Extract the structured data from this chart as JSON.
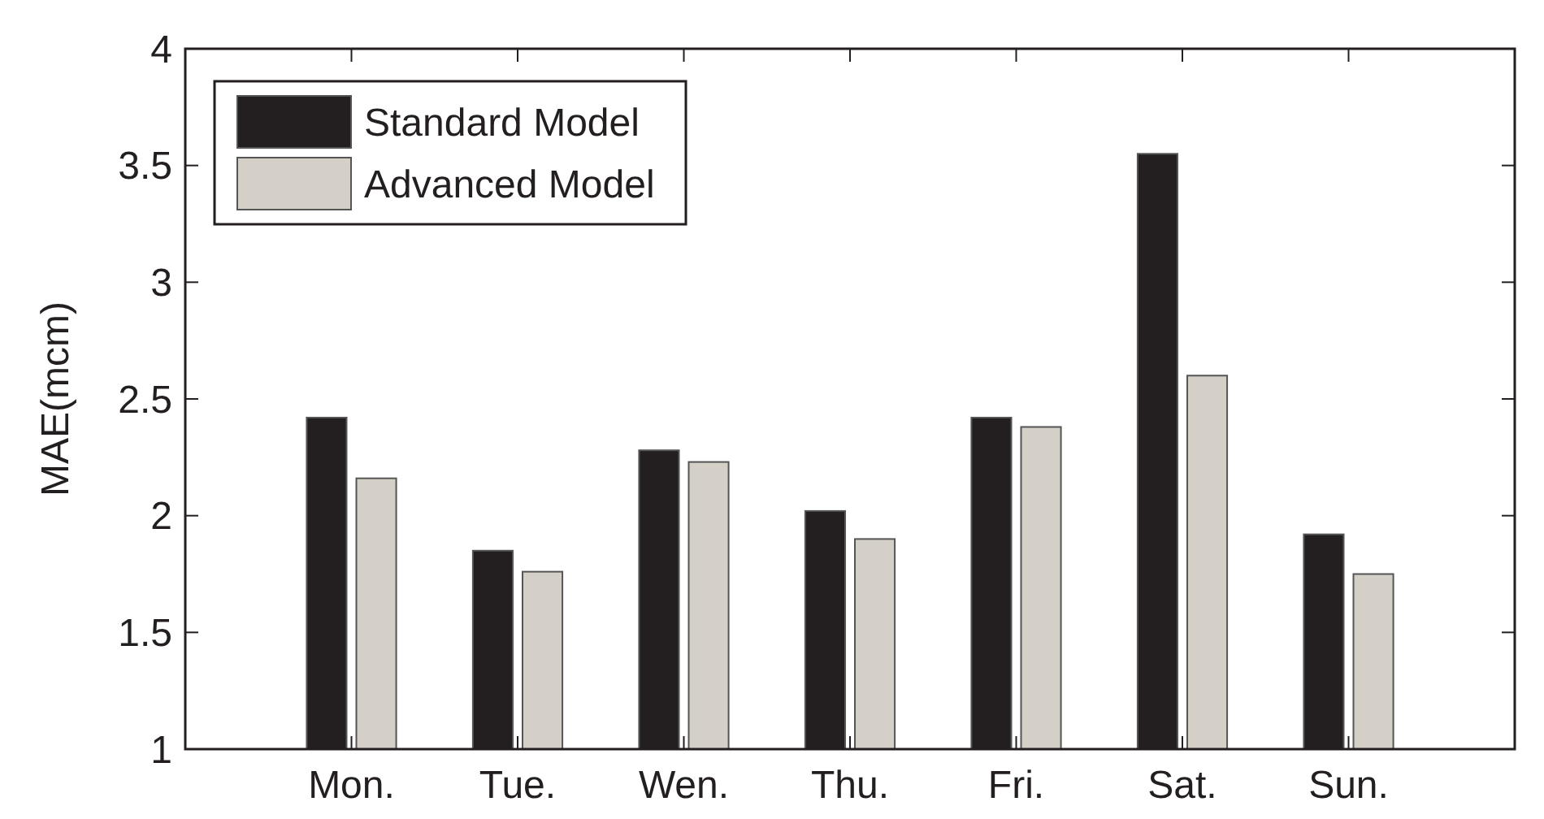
{
  "chart_data": {
    "type": "bar",
    "ylabel": "MAE(mcm)",
    "categories": [
      "Mon.",
      "Tue.",
      "Wen.",
      "Thu.",
      "Fri.",
      "Sat.",
      "Sun."
    ],
    "series": [
      {
        "name": "Standard Model",
        "color": "#231f20",
        "values": [
          2.42,
          1.85,
          2.28,
          2.02,
          2.42,
          3.55,
          1.92
        ]
      },
      {
        "name": "Advanced Model",
        "color": "#d4d0c8",
        "values": [
          2.16,
          1.76,
          2.23,
          1.9,
          2.38,
          2.6,
          1.75
        ]
      }
    ],
    "ylim": [
      1,
      4
    ],
    "yticks": [
      1,
      1.5,
      2,
      2.5,
      3,
      3.5,
      4
    ],
    "grid": false,
    "legend": "top left"
  }
}
